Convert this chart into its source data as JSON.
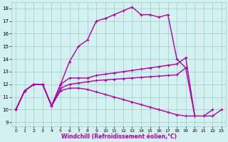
{
  "line1": {
    "x": [
      0,
      1,
      2,
      3,
      4,
      5,
      6,
      7,
      8,
      9,
      10,
      11,
      12,
      13,
      14,
      15,
      16,
      17,
      18,
      19,
      20,
      21,
      22,
      23
    ],
    "y": [
      10,
      11.5,
      12,
      12,
      10.3,
      12,
      13.8,
      15,
      15.5,
      17,
      17.2,
      17.5,
      17.8,
      18.1,
      17.5,
      17.5,
      17.3,
      17.5,
      14,
      13.3,
      null,
      9.5,
      9.5,
      10
    ]
  },
  "line2": {
    "x": [
      0,
      1,
      2,
      3,
      4,
      5,
      6,
      7,
      8,
      9,
      10,
      11,
      12,
      13,
      14,
      15,
      16,
      17,
      18,
      19,
      20,
      21,
      22,
      23
    ],
    "y": [
      10,
      11.5,
      12,
      12,
      10.3,
      12,
      12.5,
      12.5,
      12.5,
      12.7,
      12.8,
      12.9,
      13.0,
      13.1,
      13.2,
      13.3,
      13.4,
      13.5,
      13.6,
      14.1,
      9.5,
      9.5,
      10,
      null
    ]
  },
  "line3": {
    "x": [
      0,
      1,
      2,
      3,
      4,
      5,
      6,
      7,
      8,
      9,
      10,
      11,
      12,
      13,
      14,
      15,
      16,
      17,
      18,
      19,
      20,
      21,
      22,
      23
    ],
    "y": [
      10,
      11.5,
      12,
      12,
      10.3,
      11.7,
      12.0,
      12.1,
      12.2,
      12.3,
      12.35,
      12.4,
      12.45,
      12.5,
      12.55,
      12.6,
      12.65,
      12.7,
      12.75,
      13.3,
      9.5,
      null,
      null,
      null
    ]
  },
  "line4": {
    "x": [
      0,
      1,
      2,
      3,
      4,
      5,
      6,
      7,
      8,
      9,
      10,
      11,
      12,
      13,
      14,
      15,
      16,
      17,
      18,
      19,
      20
    ],
    "y": [
      10,
      11.5,
      12,
      12,
      10.3,
      11.5,
      11.7,
      11.7,
      11.6,
      11.4,
      11.2,
      11.0,
      10.8,
      10.6,
      10.4,
      10.2,
      10.0,
      9.8,
      9.6,
      9.5,
      9.5
    ]
  },
  "line_color": "#aa00aa",
  "bg_color": "#d4f0f0",
  "grid_color": "#99cccc",
  "xlabel": "Windchill (Refroidissement éolien,°C)",
  "xlim": [
    -0.5,
    23.5
  ],
  "ylim": [
    8.7,
    18.5
  ],
  "yticks": [
    9,
    10,
    11,
    12,
    13,
    14,
    15,
    16,
    17,
    18
  ],
  "xticks": [
    0,
    1,
    2,
    3,
    4,
    5,
    6,
    7,
    8,
    9,
    10,
    11,
    12,
    13,
    14,
    15,
    16,
    17,
    18,
    19,
    20,
    21,
    22,
    23
  ]
}
